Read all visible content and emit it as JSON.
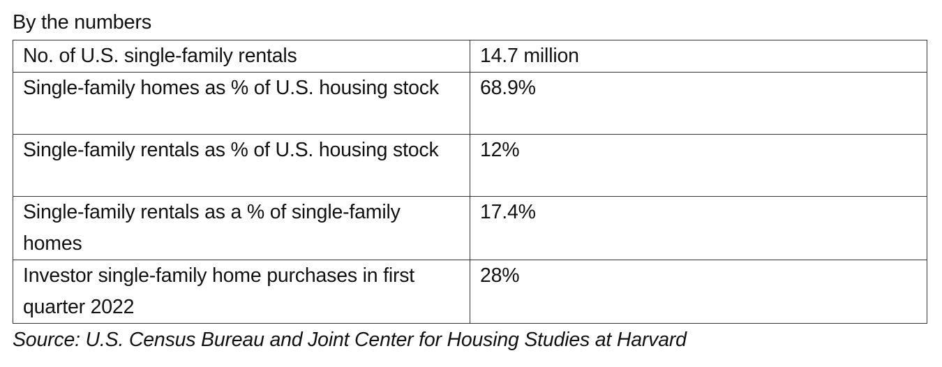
{
  "title": "By the numbers",
  "rows": [
    {
      "label": "No. of U.S. single-family rentals",
      "value": "14.7 million"
    },
    {
      "label": "Single-family homes as % of U.S. housing stock",
      "value": "68.9%"
    },
    {
      "label": "Single-family rentals as % of U.S. housing stock",
      "value": "12%"
    },
    {
      "label": "Single-family rentals as a % of single-family homes",
      "value": "17.4%"
    },
    {
      "label": "Investor single-family home purchases in first quarter 2022",
      "value": "28%"
    }
  ],
  "source": "Source: U.S. Census Bureau and Joint Center for Housing Studies at Harvard"
}
